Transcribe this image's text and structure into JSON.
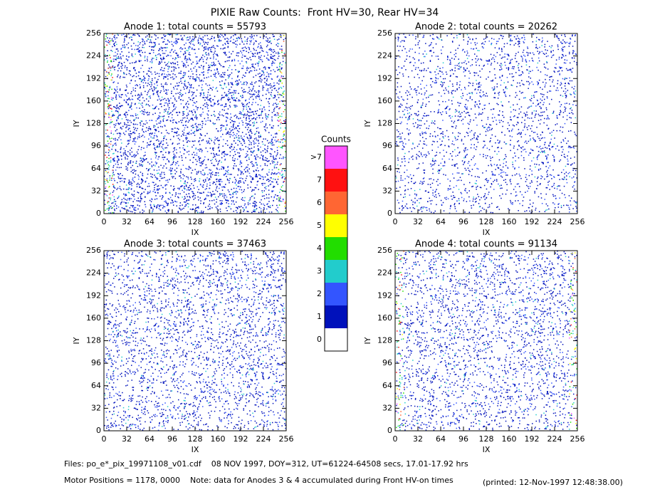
{
  "title": "PIXIE Raw Counts:  Front HV=30, Rear HV=34",
  "chart_data": [
    {
      "type": "heatmap",
      "title": "Anode 1: total counts = 55793",
      "xlabel": "IX",
      "ylabel": "IY",
      "xlim": [
        0,
        256
      ],
      "ylim": [
        0,
        256
      ],
      "xticks": [
        0,
        32,
        64,
        96,
        128,
        160,
        192,
        224,
        256
      ],
      "yticks": [
        0,
        32,
        64,
        96,
        128,
        160,
        192,
        224,
        256
      ]
    },
    {
      "type": "heatmap",
      "title": "Anode 2: total counts = 20262",
      "xlabel": "IX",
      "ylabel": "IY",
      "xlim": [
        0,
        256
      ],
      "ylim": [
        0,
        256
      ],
      "xticks": [
        0,
        32,
        64,
        96,
        128,
        160,
        192,
        224,
        256
      ],
      "yticks": [
        0,
        32,
        64,
        96,
        128,
        160,
        192,
        224,
        256
      ]
    },
    {
      "type": "heatmap",
      "title": "Anode 3: total counts = 37463",
      "xlabel": "IX",
      "ylabel": "IY",
      "xlim": [
        0,
        256
      ],
      "ylim": [
        0,
        256
      ],
      "xticks": [
        0,
        32,
        64,
        96,
        128,
        160,
        192,
        224,
        256
      ],
      "yticks": [
        0,
        32,
        64,
        96,
        128,
        160,
        192,
        224,
        256
      ]
    },
    {
      "type": "heatmap",
      "title": "Anode 4: total counts = 91134",
      "xlabel": "IX",
      "ylabel": "IY",
      "xlim": [
        0,
        256
      ],
      "ylim": [
        0,
        256
      ],
      "xticks": [
        0,
        32,
        64,
        96,
        128,
        160,
        192,
        224,
        256
      ],
      "yticks": [
        0,
        32,
        64,
        96,
        128,
        160,
        192,
        224,
        256
      ]
    }
  ],
  "colorbar": {
    "title": "Counts",
    "labels": [
      ">7",
      "7",
      "6",
      "5",
      "4",
      "3",
      "2",
      "1",
      "0"
    ],
    "colors": [
      "#ff55ff",
      "#ff1111",
      "#ff6633",
      "#ffff00",
      "#22dd00",
      "#22cccc",
      "#3355ff",
      "#0011bb",
      "#ffffff"
    ]
  },
  "footer": {
    "files": "Files: po_e*_pix_19971108_v01.cdf    08 NOV 1997, DOY=312, UT=61224-64508 secs, 17.01-17.92 hrs",
    "motor": "Motor Positions = 1178, 0000    Note: data for Anodes 3 & 4 accumulated during Front HV-on times",
    "printed": "(printed: 12-Nov-1997 12:48:38.00)"
  }
}
